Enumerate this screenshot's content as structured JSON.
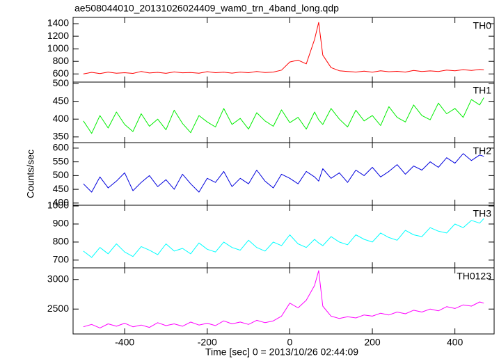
{
  "chart_data": [
    {
      "type": "line",
      "title": "ae508044010_20131026024409_wam0_trn_4band_long.qdp",
      "label": "TH0",
      "color": "#ff0000",
      "x": [
        -500,
        -480,
        -460,
        -440,
        -420,
        -400,
        -380,
        -360,
        -340,
        -320,
        -300,
        -280,
        -260,
        -240,
        -220,
        -200,
        -180,
        -160,
        -140,
        -120,
        -100,
        -80,
        -60,
        -40,
        -20,
        0,
        20,
        40,
        60,
        70,
        80,
        100,
        120,
        140,
        160,
        180,
        200,
        220,
        240,
        260,
        280,
        300,
        320,
        340,
        360,
        380,
        400,
        420,
        440,
        460,
        470
      ],
      "values": [
        600,
        625,
        605,
        630,
        612,
        620,
        608,
        640,
        615,
        625,
        610,
        632,
        618,
        622,
        611,
        636,
        620,
        628,
        613,
        630,
        620,
        640,
        622,
        630,
        660,
        790,
        820,
        760,
        1150,
        1420,
        900,
        700,
        650,
        640,
        630,
        645,
        628,
        650,
        635,
        642,
        630,
        655,
        638,
        648,
        640,
        660,
        650,
        668,
        655,
        670,
        665
      ],
      "xlim": [
        -525,
        495
      ],
      "ylim": [
        470,
        1500
      ],
      "yticks": [
        600,
        800,
        1000,
        1200,
        1400
      ]
    },
    {
      "type": "line",
      "label": "TH1",
      "color": "#00ee00",
      "x": [
        -500,
        -480,
        -460,
        -440,
        -420,
        -400,
        -380,
        -360,
        -340,
        -320,
        -300,
        -280,
        -260,
        -240,
        -220,
        -200,
        -180,
        -160,
        -140,
        -120,
        -100,
        -80,
        -60,
        -40,
        -20,
        0,
        20,
        40,
        60,
        70,
        80,
        100,
        120,
        140,
        160,
        180,
        200,
        220,
        240,
        260,
        280,
        300,
        320,
        340,
        360,
        380,
        400,
        420,
        440,
        460,
        470
      ],
      "values": [
        395,
        360,
        410,
        375,
        420,
        385,
        365,
        415,
        380,
        400,
        370,
        425,
        388,
        362,
        410,
        392,
        378,
        430,
        385,
        402,
        372,
        418,
        395,
        380,
        426,
        390,
        405,
        372,
        420,
        398,
        385,
        430,
        400,
        378,
        425,
        395,
        410,
        382,
        435,
        405,
        392,
        440,
        410,
        398,
        445,
        415,
        430,
        405,
        455,
        440,
        460
      ],
      "xlim": [
        -525,
        495
      ],
      "ylim": [
        334,
        504
      ],
      "yticks": [
        350,
        400,
        450,
        500
      ]
    },
    {
      "type": "line",
      "label": "TH2",
      "color": "#0000dd",
      "y_label": "Counts/sec",
      "x": [
        -500,
        -480,
        -460,
        -440,
        -420,
        -400,
        -380,
        -360,
        -340,
        -320,
        -300,
        -280,
        -260,
        -240,
        -220,
        -200,
        -180,
        -160,
        -140,
        -120,
        -100,
        -80,
        -60,
        -40,
        -20,
        0,
        20,
        40,
        60,
        70,
        80,
        100,
        120,
        140,
        160,
        180,
        200,
        220,
        240,
        260,
        280,
        300,
        320,
        340,
        360,
        380,
        400,
        420,
        440,
        460,
        470
      ],
      "values": [
        470,
        440,
        495,
        455,
        480,
        510,
        445,
        475,
        500,
        460,
        485,
        450,
        505,
        470,
        440,
        490,
        475,
        515,
        460,
        490,
        470,
        520,
        480,
        455,
        505,
        490,
        470,
        515,
        495,
        480,
        525,
        490,
        510,
        475,
        520,
        500,
        530,
        495,
        515,
        540,
        505,
        535,
        520,
        550,
        530,
        565,
        545,
        580,
        555,
        575,
        570
      ],
      "xlim": [
        -525,
        495
      ],
      "ylim": [
        392,
        620
      ],
      "yticks": [
        400,
        450,
        500,
        550,
        600
      ]
    },
    {
      "type": "line",
      "label": "TH3",
      "color": "#00ffff",
      "x": [
        -500,
        -480,
        -460,
        -440,
        -420,
        -400,
        -380,
        -360,
        -340,
        -320,
        -300,
        -280,
        -260,
        -240,
        -220,
        -200,
        -180,
        -160,
        -140,
        -120,
        -100,
        -80,
        -60,
        -40,
        -20,
        0,
        20,
        40,
        60,
        70,
        80,
        100,
        120,
        140,
        160,
        180,
        200,
        220,
        240,
        260,
        280,
        300,
        320,
        340,
        360,
        380,
        400,
        420,
        440,
        460,
        470
      ],
      "values": [
        750,
        715,
        770,
        735,
        790,
        745,
        720,
        775,
        755,
        730,
        790,
        750,
        765,
        735,
        795,
        760,
        745,
        800,
        770,
        755,
        810,
        770,
        750,
        800,
        780,
        840,
        790,
        770,
        815,
        795,
        780,
        830,
        800,
        785,
        840,
        815,
        800,
        850,
        825,
        810,
        865,
        840,
        830,
        880,
        860,
        850,
        900,
        880,
        920,
        905,
        930
      ],
      "xlim": [
        -525,
        495
      ],
      "ylim": [
        657,
        1004
      ],
      "yticks": [
        700,
        800,
        900,
        1000
      ]
    },
    {
      "type": "line",
      "label": "TH0123",
      "color": "#ff00ff",
      "x_label": "Time [sec] 0 = 2013/10/26 02:44:09",
      "x": [
        -500,
        -480,
        -460,
        -440,
        -420,
        -400,
        -380,
        -360,
        -340,
        -320,
        -300,
        -280,
        -260,
        -240,
        -220,
        -200,
        -180,
        -160,
        -140,
        -120,
        -100,
        -80,
        -60,
        -40,
        -20,
        0,
        20,
        40,
        60,
        70,
        80,
        100,
        120,
        140,
        160,
        180,
        200,
        220,
        240,
        260,
        280,
        300,
        320,
        340,
        360,
        380,
        400,
        420,
        440,
        460,
        470
      ],
      "values": [
        2200,
        2240,
        2180,
        2250,
        2210,
        2260,
        2200,
        2230,
        2190,
        2270,
        2220,
        2250,
        2210,
        2280,
        2230,
        2260,
        2220,
        2300,
        2250,
        2280,
        2240,
        2310,
        2270,
        2300,
        2380,
        2600,
        2520,
        2650,
        2900,
        3150,
        2550,
        2380,
        2340,
        2370,
        2350,
        2400,
        2380,
        2430,
        2400,
        2450,
        2420,
        2480,
        2450,
        2500,
        2470,
        2540,
        2510,
        2570,
        2550,
        2620,
        2600
      ],
      "xlim": [
        -525,
        495
      ],
      "ylim": [
        2079,
        3197
      ],
      "yticks": [
        2500,
        3000
      ],
      "xticks": [
        -400,
        -200,
        0,
        200,
        400
      ]
    }
  ]
}
